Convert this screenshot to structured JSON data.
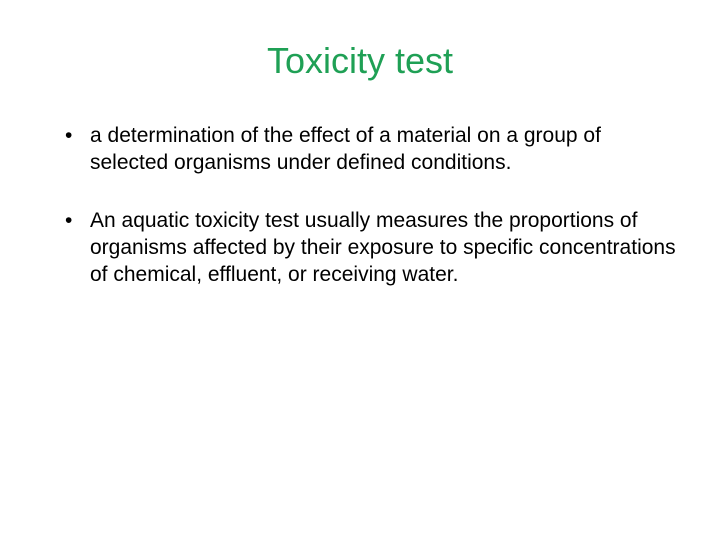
{
  "slide": {
    "title": "Toxicity test",
    "title_color": "#1fa055",
    "title_fontsize": 36,
    "background_color": "#ffffff",
    "body_color": "#000000",
    "body_fontsize": 21,
    "bullets": [
      {
        "text": "a determination of the effect of a material on a group of selected organisms under defined conditions."
      },
      {
        "text": "An aquatic toxicity test usually measures the proportions of organisms affected by their exposure to specific concentrations of chemical, effluent, or receiving water."
      }
    ]
  }
}
